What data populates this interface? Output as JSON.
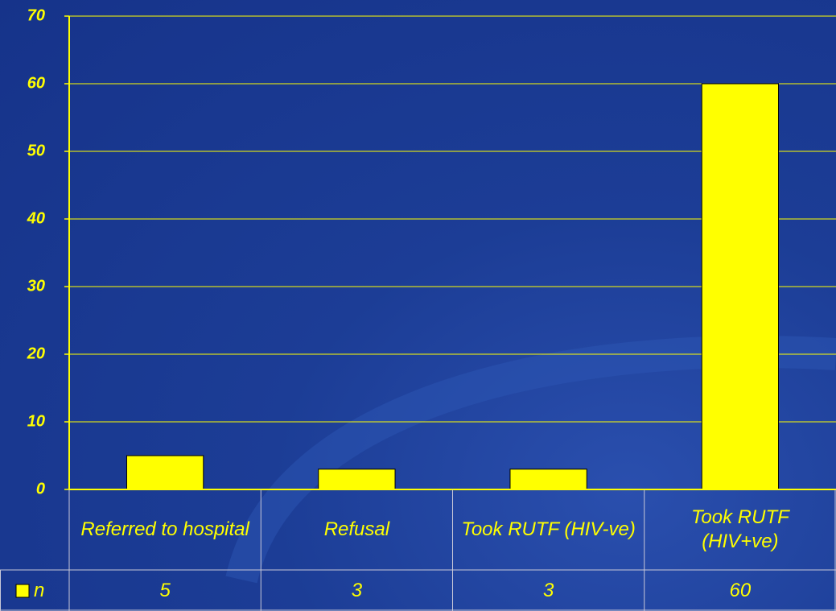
{
  "chart_data": {
    "type": "bar",
    "categories": [
      "Referred to hospital",
      "Refusal",
      "Took RUTF (HIV-ve)",
      "Took RUTF (HIV+ve)"
    ],
    "series": [
      {
        "name": "n",
        "color": "#ffff00",
        "values": [
          5,
          3,
          3,
          60
        ]
      }
    ],
    "ylim": [
      0,
      70
    ],
    "yticks": [
      0,
      10,
      20,
      30,
      40,
      50,
      60,
      70
    ],
    "grid": true,
    "data_table": true
  }
}
